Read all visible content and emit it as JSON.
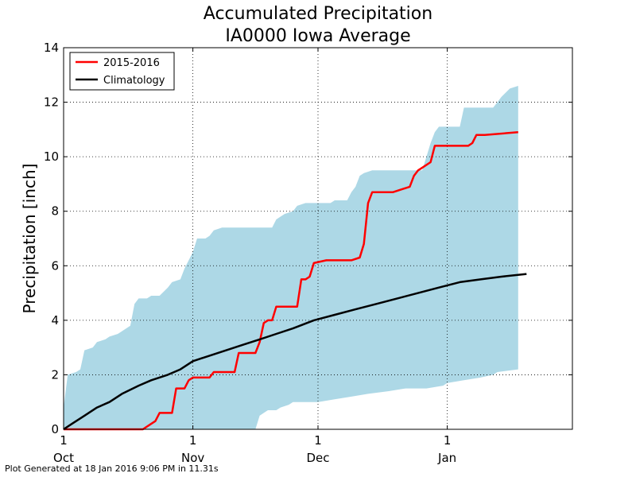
{
  "chart_data": {
    "type": "line",
    "title": [
      "Accumulated Precipitation",
      "IA0000 Iowa Average"
    ],
    "ylabel": "Precipitation [inch]",
    "xlabel": "",
    "x_domain": [
      "2015-10-01",
      "2016-01-31"
    ],
    "ylim": [
      0,
      14
    ],
    "y_ticks": [
      0,
      2,
      4,
      6,
      8,
      10,
      12,
      14
    ],
    "x_ticks": [
      {
        "date": "2015-10-01",
        "day": "1",
        "month": "Oct"
      },
      {
        "date": "2015-11-01",
        "day": "1",
        "month": "Nov"
      },
      {
        "date": "2015-12-01",
        "day": "1",
        "month": "Dec"
      },
      {
        "date": "2016-01-01",
        "day": "1",
        "month": "Jan"
      }
    ],
    "grid": true,
    "legend_position": "top-left",
    "band": {
      "color": "#add8e6",
      "upper": [
        [
          "2015-10-01",
          0.8
        ],
        [
          "2015-10-02",
          2.0
        ],
        [
          "2015-10-04",
          2.1
        ],
        [
          "2015-10-05",
          2.2
        ],
        [
          "2015-10-06",
          2.9
        ],
        [
          "2015-10-08",
          3.0
        ],
        [
          "2015-10-09",
          3.2
        ],
        [
          "2015-10-11",
          3.3
        ],
        [
          "2015-10-12",
          3.4
        ],
        [
          "2015-10-14",
          3.5
        ],
        [
          "2015-10-15",
          3.6
        ],
        [
          "2015-10-17",
          3.8
        ],
        [
          "2015-10-18",
          4.6
        ],
        [
          "2015-10-19",
          4.8
        ],
        [
          "2015-10-21",
          4.8
        ],
        [
          "2015-10-22",
          4.9
        ],
        [
          "2015-10-24",
          4.9
        ],
        [
          "2015-10-26",
          5.2
        ],
        [
          "2015-10-27",
          5.4
        ],
        [
          "2015-10-29",
          5.5
        ],
        [
          "2015-10-30",
          5.9
        ],
        [
          "2015-11-01",
          6.5
        ],
        [
          "2015-11-02",
          7.0
        ],
        [
          "2015-11-04",
          7.0
        ],
        [
          "2015-11-05",
          7.1
        ],
        [
          "2015-11-06",
          7.3
        ],
        [
          "2015-11-08",
          7.4
        ],
        [
          "2015-11-20",
          7.4
        ],
        [
          "2015-11-21",
          7.7
        ],
        [
          "2015-11-23",
          7.9
        ],
        [
          "2015-11-25",
          8.0
        ],
        [
          "2015-11-26",
          8.2
        ],
        [
          "2015-11-28",
          8.3
        ],
        [
          "2015-12-04",
          8.3
        ],
        [
          "2015-12-05",
          8.4
        ],
        [
          "2015-12-08",
          8.4
        ],
        [
          "2015-12-09",
          8.7
        ],
        [
          "2015-12-10",
          8.9
        ],
        [
          "2015-12-11",
          9.3
        ],
        [
          "2015-12-12",
          9.4
        ],
        [
          "2015-12-14",
          9.5
        ],
        [
          "2015-12-26",
          9.5
        ],
        [
          "2015-12-27",
          10.0
        ],
        [
          "2015-12-28",
          10.5
        ],
        [
          "2015-12-29",
          10.9
        ],
        [
          "2015-12-30",
          11.1
        ],
        [
          "2016-01-04",
          11.1
        ],
        [
          "2016-01-05",
          11.8
        ],
        [
          "2016-01-12",
          11.8
        ],
        [
          "2016-01-13",
          12.0
        ],
        [
          "2016-01-14",
          12.2
        ],
        [
          "2016-01-16",
          12.5
        ],
        [
          "2016-01-18",
          12.6
        ]
      ],
      "lower": [
        [
          "2015-10-01",
          0.0
        ],
        [
          "2015-11-16",
          0.0
        ],
        [
          "2015-11-17",
          0.5
        ],
        [
          "2015-11-18",
          0.6
        ],
        [
          "2015-11-19",
          0.7
        ],
        [
          "2015-11-21",
          0.7
        ],
        [
          "2015-11-22",
          0.8
        ],
        [
          "2015-11-24",
          0.9
        ],
        [
          "2015-11-25",
          1.0
        ],
        [
          "2015-11-30",
          1.0
        ],
        [
          "2015-12-01",
          1.0
        ],
        [
          "2015-12-05",
          1.1
        ],
        [
          "2015-12-09",
          1.2
        ],
        [
          "2015-12-13",
          1.3
        ],
        [
          "2015-12-18",
          1.4
        ],
        [
          "2015-12-22",
          1.5
        ],
        [
          "2015-12-27",
          1.5
        ],
        [
          "2015-12-31",
          1.6
        ],
        [
          "2016-01-01",
          1.7
        ],
        [
          "2016-01-05",
          1.8
        ],
        [
          "2016-01-09",
          1.9
        ],
        [
          "2016-01-12",
          2.0
        ],
        [
          "2016-01-13",
          2.1
        ],
        [
          "2016-01-18",
          2.2
        ]
      ]
    },
    "series": [
      {
        "name": "2015-2016",
        "color": "#ff0000",
        "points": [
          [
            "2015-10-01",
            0.0
          ],
          [
            "2015-10-20",
            0.0
          ],
          [
            "2015-10-22",
            0.2
          ],
          [
            "2015-10-23",
            0.3
          ],
          [
            "2015-10-24",
            0.6
          ],
          [
            "2015-10-27",
            0.6
          ],
          [
            "2015-10-28",
            1.5
          ],
          [
            "2015-10-30",
            1.5
          ],
          [
            "2015-10-31",
            1.8
          ],
          [
            "2015-11-01",
            1.9
          ],
          [
            "2015-11-05",
            1.9
          ],
          [
            "2015-11-06",
            2.1
          ],
          [
            "2015-11-11",
            2.1
          ],
          [
            "2015-11-12",
            2.8
          ],
          [
            "2015-11-16",
            2.8
          ],
          [
            "2015-11-17",
            3.2
          ],
          [
            "2015-11-18",
            3.9
          ],
          [
            "2015-11-19",
            4.0
          ],
          [
            "2015-11-20",
            4.0
          ],
          [
            "2015-11-21",
            4.5
          ],
          [
            "2015-11-26",
            4.5
          ],
          [
            "2015-11-27",
            5.5
          ],
          [
            "2015-11-28",
            5.5
          ],
          [
            "2015-11-29",
            5.6
          ],
          [
            "2015-11-30",
            6.1
          ],
          [
            "2015-12-03",
            6.2
          ],
          [
            "2015-12-05",
            6.2
          ],
          [
            "2015-12-09",
            6.2
          ],
          [
            "2015-12-11",
            6.3
          ],
          [
            "2015-12-12",
            6.8
          ],
          [
            "2015-12-13",
            8.3
          ],
          [
            "2015-12-14",
            8.7
          ],
          [
            "2015-12-19",
            8.7
          ],
          [
            "2015-12-23",
            8.9
          ],
          [
            "2015-12-24",
            9.3
          ],
          [
            "2015-12-25",
            9.5
          ],
          [
            "2015-12-26",
            9.6
          ],
          [
            "2015-12-28",
            9.8
          ],
          [
            "2015-12-29",
            10.4
          ],
          [
            "2016-01-01",
            10.4
          ],
          [
            "2016-01-06",
            10.4
          ],
          [
            "2016-01-07",
            10.5
          ],
          [
            "2016-01-08",
            10.8
          ],
          [
            "2016-01-10",
            10.8
          ],
          [
            "2016-01-18",
            10.9
          ]
        ]
      },
      {
        "name": "Climatology",
        "color": "#000000",
        "points": [
          [
            "2015-10-01",
            0.0
          ],
          [
            "2015-10-03",
            0.2
          ],
          [
            "2015-10-06",
            0.5
          ],
          [
            "2015-10-09",
            0.8
          ],
          [
            "2015-10-12",
            1.0
          ],
          [
            "2015-10-15",
            1.3
          ],
          [
            "2015-10-19",
            1.6
          ],
          [
            "2015-10-22",
            1.8
          ],
          [
            "2015-10-26",
            2.0
          ],
          [
            "2015-10-29",
            2.2
          ],
          [
            "2015-11-01",
            2.5
          ],
          [
            "2015-11-05",
            2.7
          ],
          [
            "2015-11-09",
            2.9
          ],
          [
            "2015-11-13",
            3.1
          ],
          [
            "2015-11-17",
            3.3
          ],
          [
            "2015-11-21",
            3.5
          ],
          [
            "2015-11-25",
            3.7
          ],
          [
            "2015-11-30",
            4.0
          ],
          [
            "2015-12-05",
            4.2
          ],
          [
            "2015-12-10",
            4.4
          ],
          [
            "2015-12-15",
            4.6
          ],
          [
            "2015-12-20",
            4.8
          ],
          [
            "2015-12-25",
            5.0
          ],
          [
            "2015-12-30",
            5.2
          ],
          [
            "2016-01-04",
            5.4
          ],
          [
            "2016-01-09",
            5.5
          ],
          [
            "2016-01-14",
            5.6
          ],
          [
            "2016-01-20",
            5.7
          ]
        ]
      }
    ]
  },
  "footer": "Plot Generated at 18 Jan 2016 9:06 PM in 11.31s"
}
